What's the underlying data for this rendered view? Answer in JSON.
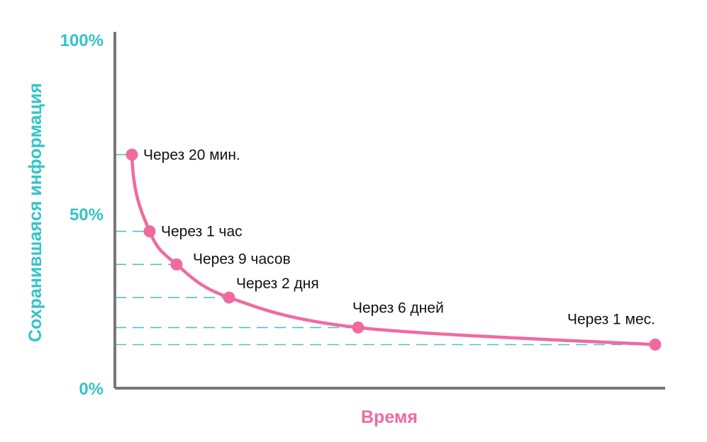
{
  "chart_data": {
    "type": "line",
    "title": "",
    "xlabel": "Время",
    "ylabel": "Сохранившаяся информация",
    "y_ticks": [
      "0%",
      "50%",
      "100%"
    ],
    "ylim": [
      0,
      100
    ],
    "grid": false,
    "x_axis_values_visible": false,
    "x_scale": "nonlinear (not labeled)",
    "points": [
      {
        "label": "Через 20 мин.",
        "y": 67
      },
      {
        "label": "Через 1 час",
        "y": 45
      },
      {
        "label": "Через 9 часов",
        "y": 35.5
      },
      {
        "label": "Через 2 дня",
        "y": 26
      },
      {
        "label": "Через 6 дней",
        "y": 17.4
      },
      {
        "label": "Через 1 мес.",
        "y": 12.5
      }
    ],
    "colors": {
      "curve": "#f06aa0",
      "axis_titles_y": "#33c4c8",
      "axis_title_x": "#f06aa0",
      "reference_lines": "#4bc3c8",
      "axes": "#777777"
    }
  }
}
